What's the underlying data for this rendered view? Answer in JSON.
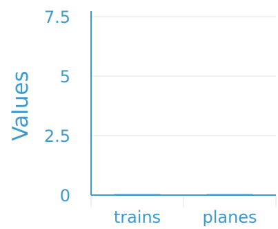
{
  "chart_data": {
    "type": "bar",
    "title": "",
    "xlabel": "",
    "ylabel": "Values",
    "categories": [
      "trains",
      "planes"
    ],
    "values": [
      0,
      0
    ],
    "ylim": [
      0,
      7.5
    ],
    "yticks": [
      0,
      2.5,
      5,
      7.5
    ],
    "ytick_labels": [
      "0",
      "2.5",
      "5",
      "7.5"
    ],
    "grid": "horizontal",
    "legend": "none",
    "colors": {
      "text": "#3c9ad0",
      "axis": "#3c9ad0",
      "grid": "#e0e0e0",
      "bar": "#3c9ad0"
    }
  }
}
